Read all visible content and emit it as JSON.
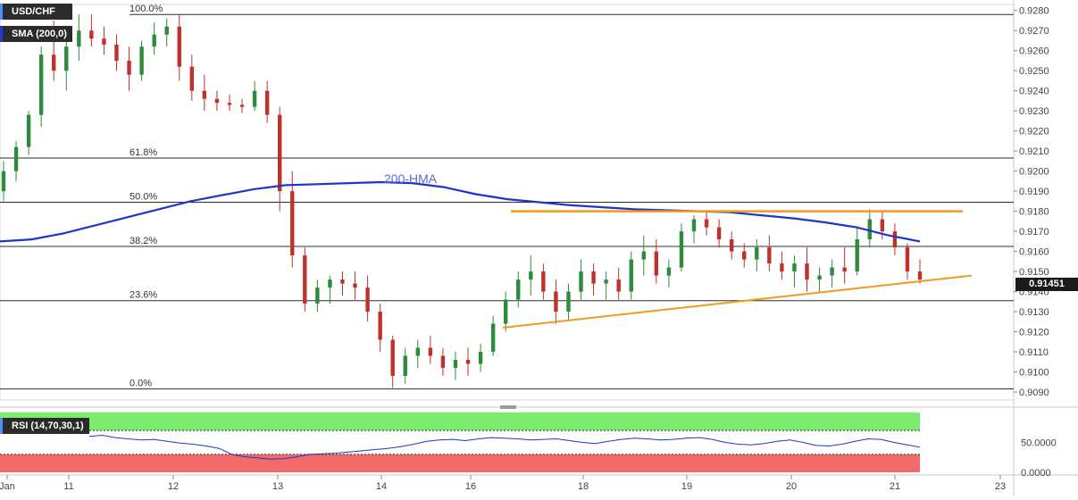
{
  "chart_data": [
    {
      "type": "candlestick",
      "symbol": "USD/CHF",
      "indicator_label": "SMA (200,0)",
      "series_label": "200-HMA",
      "current_price": "0.91451",
      "x_ticks": [
        "Jan",
        "11",
        "12",
        "13",
        "14",
        "16",
        "18",
        "19",
        "20",
        "21",
        "23"
      ],
      "y_ticks": [
        "0.9280",
        "0.9270",
        "0.9260",
        "0.9250",
        "0.9240",
        "0.9230",
        "0.9220",
        "0.9210",
        "0.9200",
        "0.9190",
        "0.9180",
        "0.9170",
        "0.9160",
        "0.9150",
        "0.9140",
        "0.9130",
        "0.9120",
        "0.9110",
        "0.9100",
        "0.9090"
      ],
      "ylim": [
        0.9086,
        0.9283
      ],
      "fib_levels": [
        {
          "label": "100.0%",
          "value": 0.9278
        },
        {
          "label": "61.8%",
          "value": 0.92065
        },
        {
          "label": "50.0%",
          "value": 0.91845
        },
        {
          "label": "38.2%",
          "value": 0.91625
        },
        {
          "label": "23.6%",
          "value": 0.91355
        },
        {
          "label": "0.0%",
          "value": 0.90915
        }
      ],
      "hma_200": [
        0.9165,
        0.9166,
        0.9169,
        0.9173,
        0.9177,
        0.9181,
        0.9185,
        0.9188,
        0.9191,
        0.9193,
        0.91935,
        0.9194,
        0.91945,
        0.9194,
        0.9192,
        0.91885,
        0.9186,
        0.91845,
        0.9183,
        0.9182,
        0.9181,
        0.91805,
        0.918,
        0.91795,
        0.9178,
        0.91765,
        0.91745,
        0.9172,
        0.9168,
        0.9165
      ],
      "resistance_line": {
        "value": 0.918
      },
      "support_trendline": {
        "start": 0.9122,
        "end": 0.9148
      },
      "candles_ohlc": [
        [
          0.919,
          0.9205,
          0.9185,
          0.92
        ],
        [
          0.92,
          0.9215,
          0.9195,
          0.9212
        ],
        [
          0.9212,
          0.923,
          0.9208,
          0.9228
        ],
        [
          0.9228,
          0.9262,
          0.9222,
          0.9258
        ],
        [
          0.9258,
          0.9275,
          0.9245,
          0.925
        ],
        [
          0.925,
          0.9266,
          0.924,
          0.9262
        ],
        [
          0.9262,
          0.9278,
          0.9255,
          0.927
        ],
        [
          0.927,
          0.9278,
          0.9262,
          0.9266
        ],
        [
          0.9266,
          0.9272,
          0.9258,
          0.9263
        ],
        [
          0.9263,
          0.9268,
          0.925,
          0.9255
        ],
        [
          0.9255,
          0.9262,
          0.924,
          0.9248
        ],
        [
          0.9248,
          0.9265,
          0.9245,
          0.9262
        ],
        [
          0.9262,
          0.9274,
          0.9258,
          0.9268
        ],
        [
          0.9268,
          0.9276,
          0.9262,
          0.9272
        ],
        [
          0.9272,
          0.9278,
          0.9245,
          0.9252
        ],
        [
          0.9252,
          0.9258,
          0.9235,
          0.924
        ],
        [
          0.924,
          0.9248,
          0.923,
          0.9236
        ],
        [
          0.9236,
          0.924,
          0.923,
          0.9234
        ],
        [
          0.9234,
          0.9238,
          0.923,
          0.9233
        ],
        [
          0.9233,
          0.9236,
          0.9229,
          0.9232
        ],
        [
          0.9232,
          0.9245,
          0.923,
          0.924
        ],
        [
          0.924,
          0.9245,
          0.9224,
          0.9228
        ],
        [
          0.9228,
          0.9232,
          0.918,
          0.919
        ],
        [
          0.919,
          0.92,
          0.9152,
          0.9158
        ],
        [
          0.9158,
          0.9162,
          0.913,
          0.9134
        ],
        [
          0.9134,
          0.9146,
          0.913,
          0.9142
        ],
        [
          0.9142,
          0.9148,
          0.9134,
          0.9146
        ],
        [
          0.9146,
          0.915,
          0.9138,
          0.9144
        ],
        [
          0.9144,
          0.915,
          0.9136,
          0.9142
        ],
        [
          0.9142,
          0.9148,
          0.9125,
          0.913
        ],
        [
          0.913,
          0.9134,
          0.911,
          0.9116
        ],
        [
          0.9116,
          0.9118,
          0.9092,
          0.9098
        ],
        [
          0.9098,
          0.9112,
          0.9094,
          0.9108
        ],
        [
          0.9108,
          0.9116,
          0.9102,
          0.9112
        ],
        [
          0.9112,
          0.9118,
          0.9104,
          0.9108
        ],
        [
          0.9108,
          0.9112,
          0.9098,
          0.9102
        ],
        [
          0.9102,
          0.911,
          0.9096,
          0.9106
        ],
        [
          0.9106,
          0.9112,
          0.9098,
          0.9104
        ],
        [
          0.9104,
          0.9114,
          0.91,
          0.911
        ],
        [
          0.911,
          0.9128,
          0.9108,
          0.9124
        ],
        [
          0.9124,
          0.914,
          0.912,
          0.9136
        ],
        [
          0.9136,
          0.915,
          0.9132,
          0.9146
        ],
        [
          0.9146,
          0.9158,
          0.9138,
          0.915
        ],
        [
          0.915,
          0.9154,
          0.9136,
          0.914
        ],
        [
          0.914,
          0.9146,
          0.9124,
          0.913
        ],
        [
          0.913,
          0.9144,
          0.9126,
          0.914
        ],
        [
          0.914,
          0.9156,
          0.9136,
          0.915
        ],
        [
          0.915,
          0.9154,
          0.9138,
          0.9144
        ],
        [
          0.9144,
          0.915,
          0.9136,
          0.9146
        ],
        [
          0.9146,
          0.9152,
          0.9136,
          0.914
        ],
        [
          0.914,
          0.916,
          0.9136,
          0.9156
        ],
        [
          0.9156,
          0.9168,
          0.9148,
          0.916
        ],
        [
          0.916,
          0.9166,
          0.9144,
          0.9148
        ],
        [
          0.9148,
          0.9156,
          0.9142,
          0.9152
        ],
        [
          0.9152,
          0.9174,
          0.915,
          0.917
        ],
        [
          0.917,
          0.9178,
          0.9164,
          0.9176
        ],
        [
          0.9176,
          0.918,
          0.9168,
          0.9172
        ],
        [
          0.9172,
          0.9176,
          0.9162,
          0.9166
        ],
        [
          0.9166,
          0.917,
          0.9156,
          0.916
        ],
        [
          0.916,
          0.9164,
          0.9152,
          0.9156
        ],
        [
          0.9156,
          0.9166,
          0.915,
          0.9162
        ],
        [
          0.9162,
          0.9168,
          0.915,
          0.9154
        ],
        [
          0.9154,
          0.916,
          0.9146,
          0.915
        ],
        [
          0.915,
          0.9158,
          0.9142,
          0.9154
        ],
        [
          0.9154,
          0.9162,
          0.914,
          0.9146
        ],
        [
          0.9146,
          0.9152,
          0.914,
          0.9148
        ],
        [
          0.9148,
          0.9156,
          0.9142,
          0.9152
        ],
        [
          0.9152,
          0.9162,
          0.9144,
          0.915
        ],
        [
          0.915,
          0.9172,
          0.9148,
          0.9166
        ],
        [
          0.9166,
          0.9181,
          0.9162,
          0.9176
        ],
        [
          0.9176,
          0.918,
          0.9166,
          0.917
        ],
        [
          0.917,
          0.9174,
          0.9158,
          0.9162
        ],
        [
          0.9162,
          0.9164,
          0.9146,
          0.915
        ],
        [
          0.915,
          0.9156,
          0.9144,
          0.9146
        ]
      ],
      "rsi_label": "RSI (14,70,30,1)",
      "rsi_ticks": [
        "50.0000",
        "0.0000"
      ],
      "rsi_levels": {
        "upper": 70,
        "lower": 30
      },
      "rsi_values": [
        60,
        62,
        58,
        56,
        54,
        55,
        52,
        49,
        47,
        44,
        40,
        30,
        26,
        24,
        22,
        23,
        26,
        30,
        31,
        32,
        34,
        36,
        38,
        40,
        43,
        47,
        52,
        54,
        55,
        53,
        56,
        58,
        57,
        56,
        54,
        55,
        56,
        53,
        50,
        48,
        52,
        55,
        57,
        56,
        54,
        55,
        57,
        58,
        55,
        50,
        47,
        46,
        48,
        52,
        54,
        50,
        45,
        44,
        47,
        52,
        56,
        55,
        50,
        46,
        42
      ]
    }
  ]
}
